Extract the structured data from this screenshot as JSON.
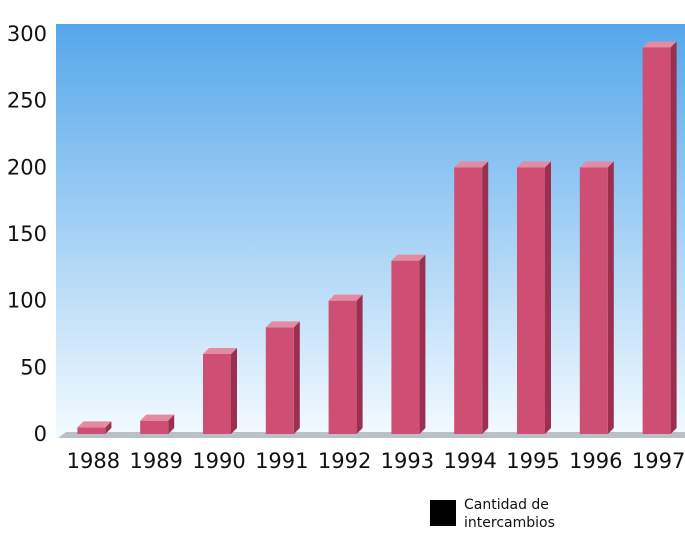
{
  "chart_data": {
    "type": "bar",
    "categories": [
      "1988",
      "1989",
      "1990",
      "1991",
      "1992",
      "1993",
      "1994",
      "1995",
      "1996",
      "1997"
    ],
    "series": [
      {
        "name": "Cantidad de intercambios",
        "values": [
          5,
          10,
          60,
          80,
          100,
          130,
          200,
          200,
          200,
          290
        ]
      }
    ],
    "ylim": [
      0,
      300
    ],
    "yticks": [
      0,
      50,
      100,
      150,
      200,
      250,
      300
    ],
    "bar_color": "#cf4f74",
    "background_gradient": [
      "#55a7ea",
      "#f4fbff"
    ],
    "legend": {
      "label": "Cantidad de intercambios",
      "swatch_color": "#000000",
      "position": "bottom-right"
    }
  }
}
